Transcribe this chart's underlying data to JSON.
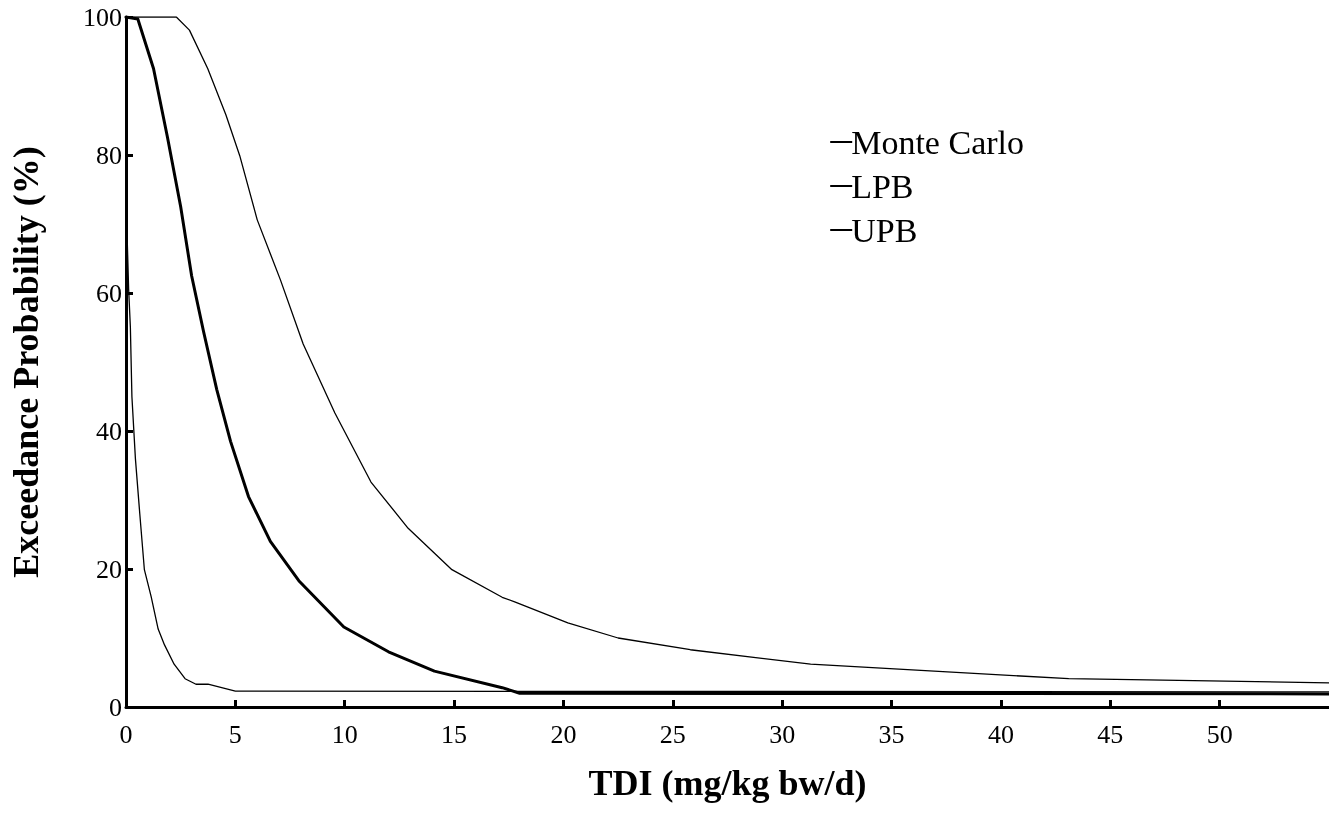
{
  "chart_data": {
    "type": "line",
    "xlabel": "TDI (mg/kg bw/d)",
    "ylabel": "Exceedance Probability (%)",
    "xlim": [
      0,
      55
    ],
    "xticks": [
      0,
      5,
      10,
      15,
      20,
      25,
      30,
      35,
      40,
      45,
      50
    ],
    "ylim": [
      0,
      100
    ],
    "yticks": [
      0,
      20,
      40,
      60,
      80,
      100
    ],
    "grid": false,
    "legend": "top right",
    "marker": "none",
    "line_style": "solid",
    "series": [
      {
        "name": "Monte Carlo",
        "color": "#000000",
        "x": [
          0,
          0.54,
          1.26,
          1.9,
          2.5,
          3.0,
          3.54,
          4.15,
          4.78,
          5.6,
          6.6,
          7.9,
          9.96,
          12.0,
          14.1,
          17.2,
          18,
          55
        ],
        "values": [
          100,
          99.7,
          92.5,
          82.5,
          72.5,
          62.5,
          54.5,
          46,
          38.5,
          30.5,
          24,
          18.3,
          11.6,
          8.0,
          5.2,
          2.8,
          2.0,
          1.9
        ]
      },
      {
        "name": "LPB",
        "color": "#000000",
        "x": [
          0,
          0.12,
          0.2,
          0.27,
          0.43,
          0.63,
          0.84,
          1.15,
          1.47,
          1.76,
          2.2,
          2.7,
          3.2,
          3.75,
          5.0,
          55
        ],
        "values": [
          74,
          60.6,
          55,
          45,
          36,
          28,
          19.9,
          16,
          11.3,
          9,
          6.2,
          4.1,
          3.3,
          3.3,
          2.3,
          2.2
        ]
      },
      {
        "name": "UPB",
        "color": "#000000",
        "x": [
          0,
          2.3,
          2.9,
          3.74,
          4.57,
          5.2,
          6.0,
          7.06,
          8.1,
          9.55,
          11.2,
          12.9,
          14.9,
          17.2,
          17.8,
          20.2,
          22.5,
          25.8,
          31.3,
          43.1,
          55
        ],
        "values": [
          100,
          100,
          98.1,
          92.5,
          85.8,
          79.9,
          70.6,
          61.9,
          52.6,
          42.6,
          32.6,
          25.9,
          19.9,
          15.9,
          15.2,
          12.2,
          10,
          8.3,
          6.2,
          4.1,
          3.5
        ]
      }
    ]
  }
}
